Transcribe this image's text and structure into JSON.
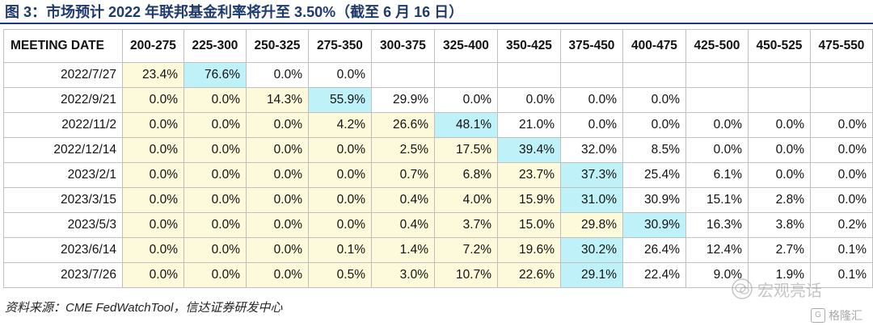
{
  "title": "图 3：市场预计 2022 年联邦基金利率将升至 3.50%（截至 6 月 16 日）",
  "source": "资料来源：CME FedWatchTool，信达证券研发中心",
  "watermark": {
    "text": "宏观亮话",
    "icon": "wechat-icon"
  },
  "watermark2": {
    "text": "格隆汇",
    "icon": "gelonghui-logo-icon"
  },
  "colors": {
    "title": "#1f3a6e",
    "yellow": "#fdfadb",
    "cyan": "#bff2f8",
    "border": "#bfbfbf"
  },
  "chart_data": {
    "type": "table",
    "date_header": "MEETING DATE",
    "columns": [
      "200-275",
      "225-300",
      "250-325",
      "275-350",
      "300-375",
      "325-400",
      "350-425",
      "375-450",
      "400-475",
      "425-500",
      "450-525",
      "475-550"
    ],
    "rows": [
      {
        "date": "2022/7/27",
        "values": [
          "23.4%",
          "76.6%",
          "0.0%",
          "0.0%",
          "",
          "",
          "",
          "",
          "",
          "",
          "",
          ""
        ],
        "highlight": 1
      },
      {
        "date": "2022/9/21",
        "values": [
          "0.0%",
          "0.0%",
          "14.3%",
          "55.9%",
          "29.9%",
          "0.0%",
          "0.0%",
          "0.0%",
          "0.0%",
          "",
          "",
          ""
        ],
        "highlight": 3
      },
      {
        "date": "2022/11/2",
        "values": [
          "0.0%",
          "0.0%",
          "0.0%",
          "4.2%",
          "26.6%",
          "48.1%",
          "21.0%",
          "0.0%",
          "0.0%",
          "0.0%",
          "0.0%",
          "0.0%"
        ],
        "highlight": 5
      },
      {
        "date": "2022/12/14",
        "values": [
          "0.0%",
          "0.0%",
          "0.0%",
          "0.0%",
          "2.5%",
          "17.5%",
          "39.4%",
          "32.0%",
          "8.5%",
          "0.0%",
          "0.0%",
          "0.0%"
        ],
        "highlight": 6
      },
      {
        "date": "2023/2/1",
        "values": [
          "0.0%",
          "0.0%",
          "0.0%",
          "0.0%",
          "0.7%",
          "6.8%",
          "23.7%",
          "37.3%",
          "25.4%",
          "6.1%",
          "0.0%",
          "0.0%"
        ],
        "highlight": 7
      },
      {
        "date": "2023/3/15",
        "values": [
          "0.0%",
          "0.0%",
          "0.0%",
          "0.0%",
          "0.4%",
          "4.0%",
          "15.9%",
          "31.0%",
          "30.9%",
          "15.1%",
          "2.8%",
          "0.0%"
        ],
        "highlight": 7
      },
      {
        "date": "2023/5/3",
        "values": [
          "0.0%",
          "0.0%",
          "0.0%",
          "0.0%",
          "0.4%",
          "3.7%",
          "15.0%",
          "29.8%",
          "30.9%",
          "16.3%",
          "3.8%",
          "0.2%"
        ],
        "highlight": 8
      },
      {
        "date": "2023/6/14",
        "values": [
          "0.0%",
          "0.0%",
          "0.0%",
          "0.1%",
          "1.4%",
          "7.2%",
          "19.6%",
          "30.2%",
          "26.4%",
          "12.4%",
          "2.7%",
          "0.1%"
        ],
        "highlight": 7
      },
      {
        "date": "2023/7/26",
        "values": [
          "0.0%",
          "0.0%",
          "0.0%",
          "0.5%",
          "3.0%",
          "10.7%",
          "22.6%",
          "29.1%",
          "22.4%",
          "9.0%",
          "1.9%",
          "0.1%"
        ],
        "highlight": 7
      }
    ]
  }
}
